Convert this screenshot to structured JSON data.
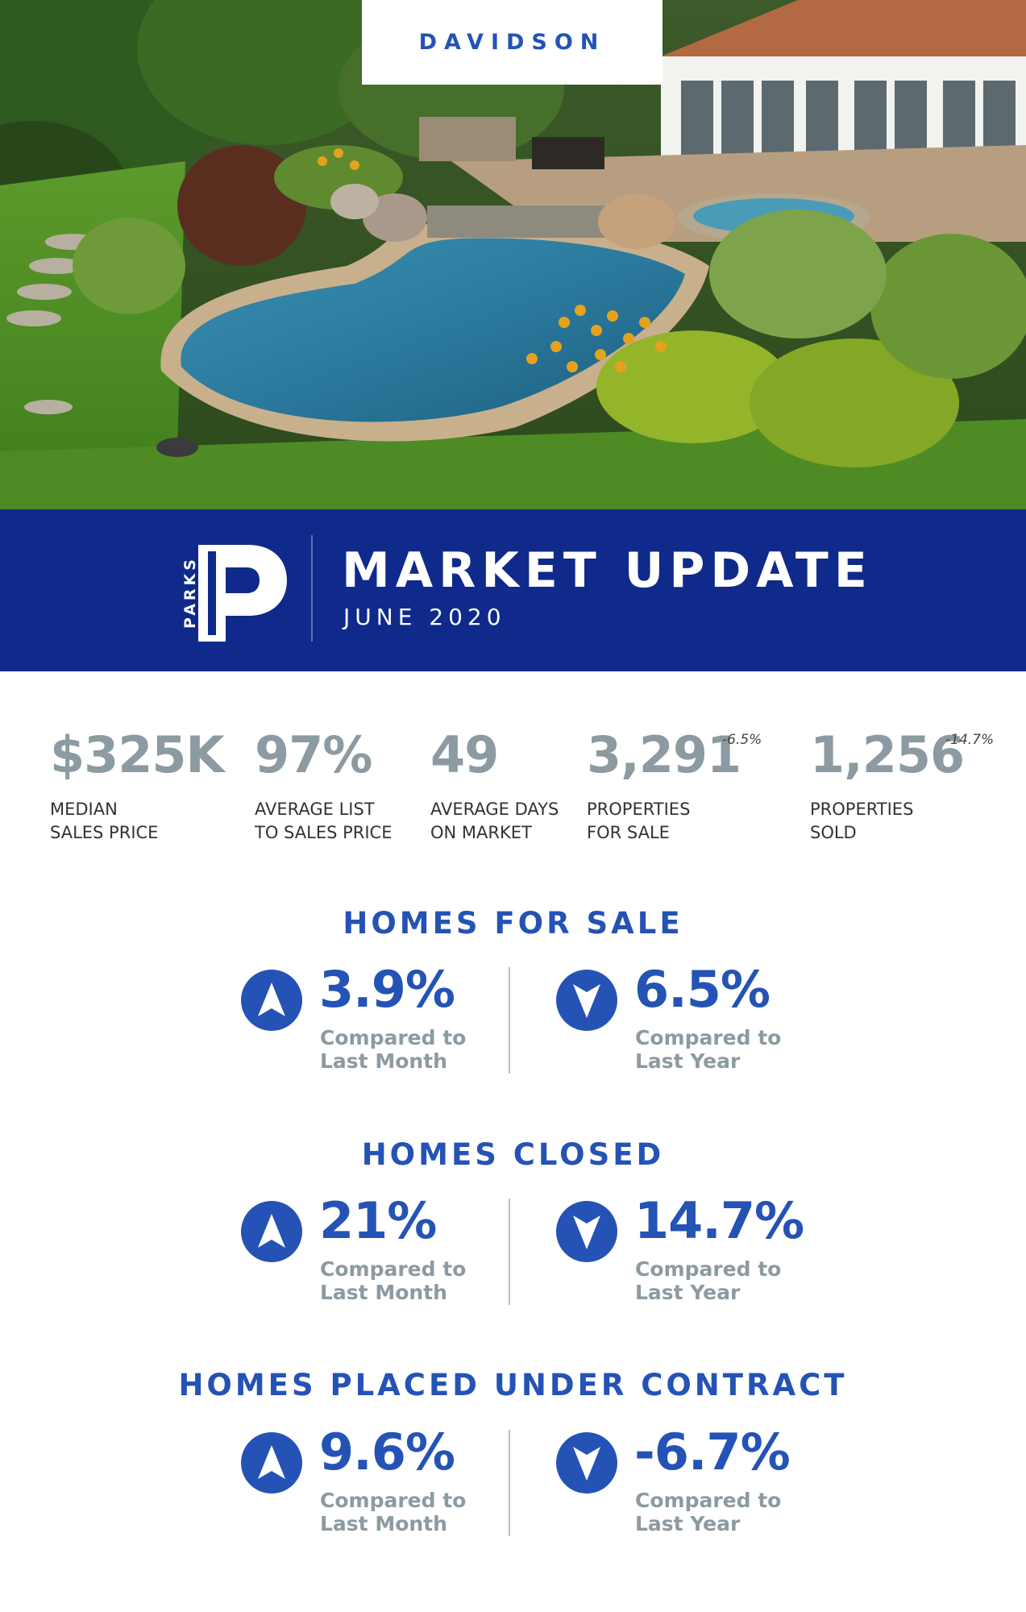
{
  "hero": {
    "city": "DAVIDSON"
  },
  "banner": {
    "logo_text": "PARKS",
    "title": "MARKET UPDATE",
    "subtitle": "JUNE 2020"
  },
  "stats": [
    {
      "value": "$325K",
      "label_line1": "MEDIAN",
      "label_line2": "SALES PRICE",
      "change": ""
    },
    {
      "value": "97%",
      "label_line1": "AVERAGE LIST",
      "label_line2": "TO SALES PRICE",
      "change": ""
    },
    {
      "value": "49",
      "label_line1": "AVERAGE DAYS",
      "label_line2": "ON MARKET",
      "change": ""
    },
    {
      "value": "3,291",
      "label_line1": "PROPERTIES",
      "label_line2": "FOR SALE",
      "change": "-6.5%"
    },
    {
      "value": "1,256",
      "label_line1": "PROPERTIES",
      "label_line2": "SOLD",
      "change": "-14.7%"
    }
  ],
  "sections": [
    {
      "title": "HOMES FOR SALE",
      "month": {
        "direction": "up",
        "value": "3.9%",
        "label_line1": "Compared to",
        "label_line2": "Last Month"
      },
      "year": {
        "direction": "down",
        "value": "6.5%",
        "label_line1": "Compared to",
        "label_line2": "Last Year"
      }
    },
    {
      "title": "HOMES CLOSED",
      "month": {
        "direction": "up",
        "value": "21%",
        "label_line1": "Compared to",
        "label_line2": "Last Month"
      },
      "year": {
        "direction": "down",
        "value": "14.7%",
        "label_line1": "Compared to",
        "label_line2": "Last Year"
      }
    },
    {
      "title": "HOMES PLACED UNDER CONTRACT",
      "month": {
        "direction": "up",
        "value": "9.6%",
        "label_line1": "Compared to",
        "label_line2": "Last Month"
      },
      "year": {
        "direction": "down",
        "value": "-6.7%",
        "label_line1": "Compared to",
        "label_line2": "Last Year"
      }
    }
  ],
  "colors": {
    "brand_blue": "#2453b5",
    "banner_navy": "#0f2a8a",
    "stat_gray": "#8c9aa1"
  },
  "icons": {
    "up": "arrow-up-icon",
    "down": "arrow-down-icon"
  }
}
